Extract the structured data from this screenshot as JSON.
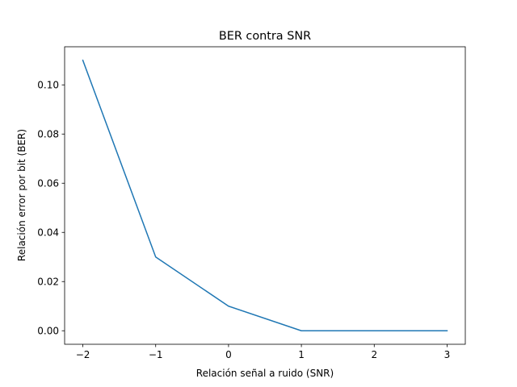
{
  "chart_data": {
    "type": "line",
    "title": "BER contra SNR",
    "xlabel": "Relación señal a ruido (SNR)",
    "ylabel": "Relación error por bit (BER)",
    "xlim": [
      -2.25,
      3.25
    ],
    "ylim": [
      -0.0055,
      0.1155
    ],
    "xticks": [
      -2,
      -1,
      0,
      1,
      2,
      3
    ],
    "xtick_labels": [
      "−2",
      "−1",
      "0",
      "1",
      "2",
      "3"
    ],
    "yticks": [
      0.0,
      0.02,
      0.04,
      0.06,
      0.08,
      0.1
    ],
    "ytick_labels": [
      "0.00",
      "0.02",
      "0.04",
      "0.06",
      "0.08",
      "0.10"
    ],
    "grid": false,
    "legend": "none",
    "series": [
      {
        "color": "#1f77b4",
        "x": [
          -2,
          -1,
          0,
          1,
          2,
          3
        ],
        "y": [
          0.11,
          0.03,
          0.01,
          0.0,
          0.0,
          0.0
        ]
      }
    ]
  }
}
